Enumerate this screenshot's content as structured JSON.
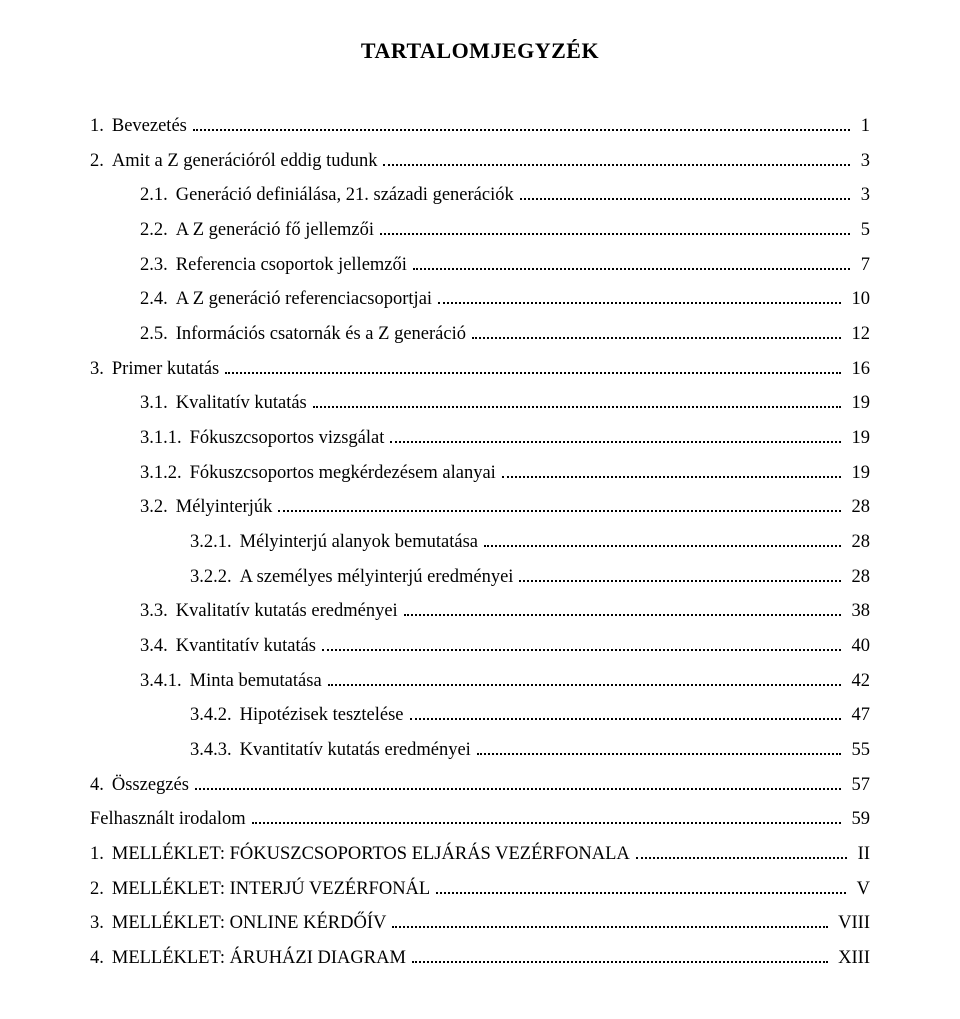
{
  "title": "TARTALOMJEGYZÉK",
  "entries": [
    {
      "indent": 0,
      "num": "1.",
      "label": "Bevezetés",
      "page": "1",
      "smallcaps": false
    },
    {
      "indent": 0,
      "num": "2.",
      "label": "Amit a Z generációról eddig tudunk",
      "page": "3",
      "smallcaps": false
    },
    {
      "indent": 1,
      "num": "2.1.",
      "label": "Generáció definiálása, 21. századi generációk",
      "page": "3",
      "smallcaps": false
    },
    {
      "indent": 1,
      "num": "2.2.",
      "label": "A Z generáció fő jellemzői",
      "page": "5",
      "smallcaps": false
    },
    {
      "indent": 1,
      "num": "2.3.",
      "label": "Referencia csoportok jellemzői",
      "page": "7",
      "smallcaps": false
    },
    {
      "indent": 1,
      "num": "2.4.",
      "label": "A Z generáció referenciacsoportjai",
      "page": "10",
      "smallcaps": false
    },
    {
      "indent": 1,
      "num": "2.5.",
      "label": "Információs csatornák és a Z generáció",
      "page": "12",
      "smallcaps": false
    },
    {
      "indent": 0,
      "num": "3.",
      "label": "Primer kutatás",
      "page": "16",
      "smallcaps": false
    },
    {
      "indent": 1,
      "num": "3.1.",
      "label": "Kvalitatív kutatás",
      "page": "19",
      "smallcaps": false
    },
    {
      "indent": 2,
      "num": "3.1.1.",
      "label": "Fókuszcsoportos vizsgálat",
      "page": "19",
      "smallcaps": false
    },
    {
      "indent": 2,
      "num": "3.1.2.",
      "label": "Fókuszcsoportos megkérdezésem alanyai",
      "page": "19",
      "smallcaps": false
    },
    {
      "indent": 1,
      "num": "3.2.",
      "label": "Mélyinterjúk",
      "page": "28",
      "smallcaps": false
    },
    {
      "indent": 3,
      "num": "3.2.1.",
      "label": "Mélyinterjú alanyok bemutatása",
      "page": "28",
      "smallcaps": false
    },
    {
      "indent": 3,
      "num": "3.2.2.",
      "label": "A személyes mélyinterjú eredményei",
      "page": "28",
      "smallcaps": false
    },
    {
      "indent": 1,
      "num": "3.3.",
      "label": "Kvalitatív kutatás eredményei",
      "page": "38",
      "smallcaps": false
    },
    {
      "indent": 1,
      "num": "3.4.",
      "label": "Kvantitatív kutatás",
      "page": "40",
      "smallcaps": false
    },
    {
      "indent": 2,
      "num": "3.4.1.",
      "label": "Minta bemutatása",
      "page": "42",
      "smallcaps": false
    },
    {
      "indent": 3,
      "num": "3.4.2.",
      "label": "Hipotézisek tesztelése",
      "page": "47",
      "smallcaps": false
    },
    {
      "indent": 3,
      "num": "3.4.3.",
      "label": "Kvantitatív kutatás eredményei",
      "page": "55",
      "smallcaps": false
    },
    {
      "indent": 0,
      "num": "4.",
      "label": "Összegzés",
      "page": "57",
      "smallcaps": false
    },
    {
      "indent": 0,
      "num": "",
      "label": "Felhasznált irodalom",
      "page": "59",
      "smallcaps": false
    },
    {
      "indent": 0,
      "num": "1.",
      "label": "MELLÉKLET: FÓKUSZCSOPORTOS ELJÁRÁS VEZÉRFONALA",
      "page": "II",
      "smallcaps": true
    },
    {
      "indent": 0,
      "num": "2.",
      "label": "MELLÉKLET: INTERJÚ VEZÉRFONÁL",
      "page": "V",
      "smallcaps": true
    },
    {
      "indent": 0,
      "num": "3.",
      "label": "MELLÉKLET: ONLINE KÉRDŐÍV",
      "page": "VIII",
      "smallcaps": true
    },
    {
      "indent": 0,
      "num": "4.",
      "label": "MELLÉKLET: ÁRUHÁZI DIAGRAM",
      "page": "XIII",
      "smallcaps": true
    }
  ]
}
